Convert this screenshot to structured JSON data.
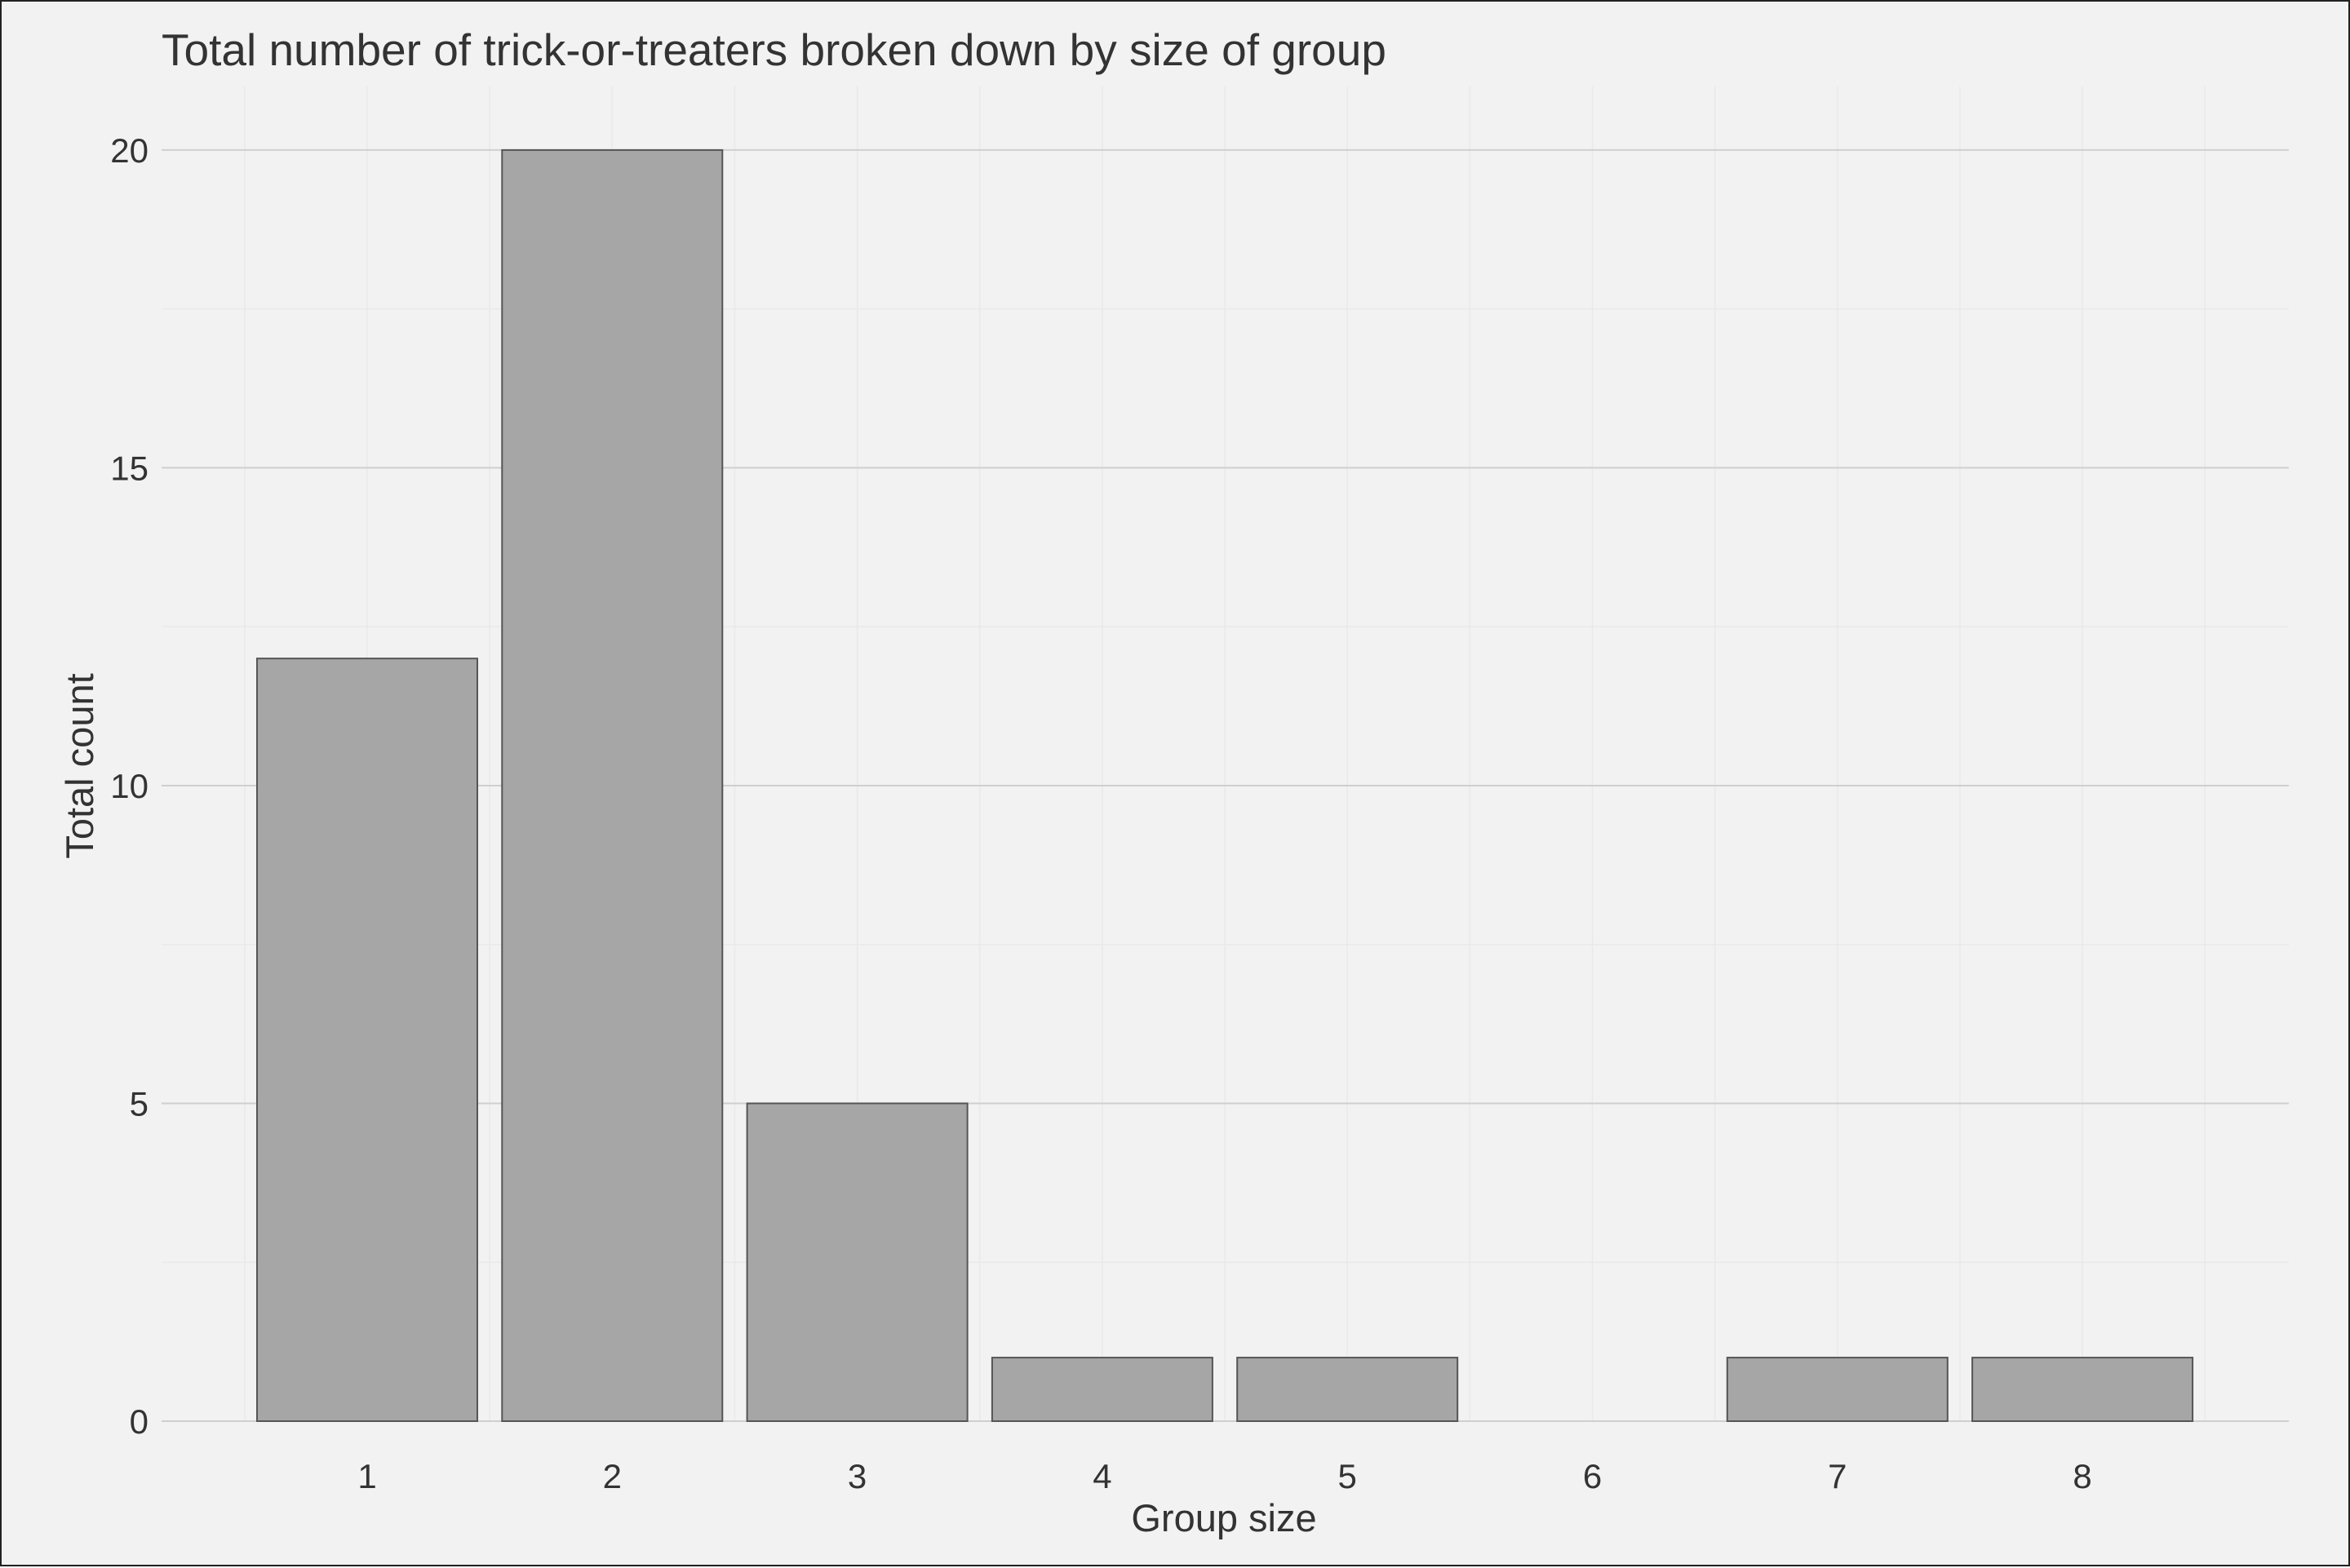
{
  "chart_data": {
    "type": "bar",
    "title": "Total number of trick-or-treaters broken down by size of group",
    "xlabel": "Group size",
    "ylabel": "Total count",
    "categories": [
      "1",
      "2",
      "3",
      "4",
      "5",
      "6",
      "7",
      "8"
    ],
    "values": [
      12,
      20,
      5,
      1,
      1,
      0,
      1,
      1
    ],
    "ylim": [
      0,
      21
    ],
    "yticks": [
      0,
      5,
      10,
      15,
      20
    ],
    "grid": true,
    "legend": "none",
    "colors": {
      "background": "#f2f2f2",
      "bar_fill": "#a6a6a6",
      "bar_outline": "#555555",
      "grid_major": "#cfcfcf",
      "text": "#333333"
    }
  }
}
